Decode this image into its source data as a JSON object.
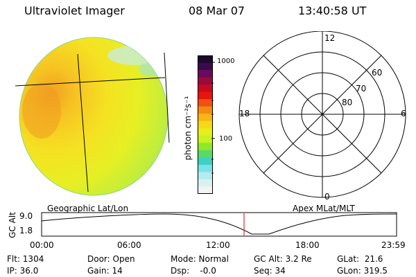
{
  "header": {
    "instrument": "Ultraviolet Imager",
    "date": "08 Mar 07",
    "time": "13:40:58 UT"
  },
  "colorbar": {
    "unit_label": "photon cm⁻²s⁻¹",
    "tick_labels": [
      "1000",
      "100"
    ],
    "colors": [
      "#1a0a2e",
      "#3a0a4a",
      "#6a0a5e",
      "#9a0a3a",
      "#c80a1e",
      "#e8140e",
      "#f05010",
      "#f58a10",
      "#f8b515",
      "#f5d818",
      "#e8ee1a",
      "#c6f21e",
      "#8ee828",
      "#5ad86a",
      "#40d0c0",
      "#7ae0ea",
      "#b4ecef",
      "#d8f2f0",
      "#eef5f2"
    ]
  },
  "polar_plot": {
    "top_label": "12",
    "left_label": "18",
    "right_label": "6",
    "bottom_label": "0",
    "lat_labels": [
      "60",
      "70",
      "80"
    ]
  },
  "timeline": {
    "left_title": "Geographic Lat/Lon",
    "right_title": "Apex MLat/MLT",
    "y_axis_label": "GC Alt",
    "y_ticks": [
      "9.0",
      "1.8"
    ],
    "x_ticks": [
      "00:00",
      "06:00",
      "12:00",
      "18:00",
      "23:59"
    ],
    "current_time_fraction": 0.5703
  },
  "info": {
    "flt": "Flt: 1304",
    "ip": "IP: 36.0",
    "door": "Door: Open",
    "gain": "Gain: 14",
    "mode": "Mode: Normal",
    "dsp": "Dsp:    -0.0",
    "gc_alt": "GC Alt: 3.2 Re",
    "seq": "Seq: 34",
    "glat": "GLat:  21.6",
    "glon": "GLon: 319.5"
  }
}
